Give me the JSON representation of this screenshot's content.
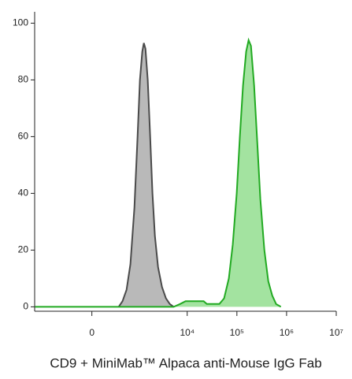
{
  "chart_data": {
    "type": "histogram-overlay",
    "x_label": "CD9 + MiniMab™ Alpaca anti-Mouse IgG Fab",
    "xscale": "arcsinh",
    "xlim": [
      -1700,
      10000000
    ],
    "xticks": [
      0,
      {
        "value": 10000,
        "label": "10⁴"
      },
      {
        "value": 100000,
        "label": "10⁵"
      },
      {
        "value": 1000000,
        "label": "10⁶"
      },
      {
        "value": 10000000,
        "label": "10⁷"
      }
    ],
    "ylim": [
      -1,
      104
    ],
    "yticks": [
      0,
      20,
      40,
      60,
      80,
      100
    ],
    "series": [
      {
        "color": "#b5b5b5",
        "line_color": "#4a4a4a",
        "x": [
          383,
          470,
          576,
          699,
          848,
          988,
          1104,
          1234,
          1330,
          1432,
          1598,
          1786,
          1993,
          2227,
          2579,
          3099,
          3721,
          4459,
          5350
        ],
        "values": [
          0,
          2,
          6,
          15,
          35,
          60,
          80,
          90,
          93,
          91,
          80,
          60,
          40,
          25,
          14,
          7,
          3,
          1,
          0
        ]
      },
      {
        "color": "#9ee29b",
        "line_color": "#22aa22",
        "x": [
          -1660,
          383,
          5350,
          7180,
          9280,
          13350,
          21450,
          24800,
          33250,
          44500,
          55400,
          68900,
          82800,
          99300,
          115000,
          133000,
          154000,
          172000,
          192000,
          222000,
          257000,
          297000,
          357000,
          428000,
          514000,
          616000,
          768000
        ],
        "values": [
          0,
          0,
          0,
          1,
          2,
          2,
          2,
          1,
          1,
          1,
          3,
          10,
          22,
          40,
          60,
          78,
          90,
          94,
          92,
          78,
          58,
          38,
          20,
          9,
          4,
          1,
          0
        ]
      }
    ]
  }
}
